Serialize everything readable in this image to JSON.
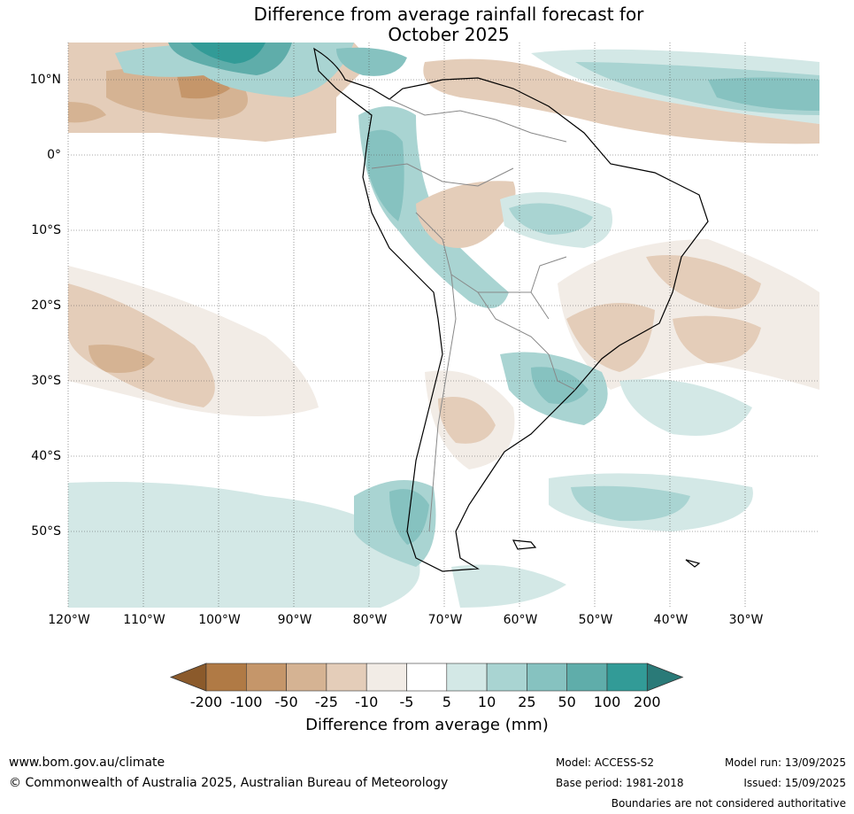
{
  "title_line1": "Difference from average rainfall forecast for",
  "title_line2": "October 2025",
  "lat_labels": [
    "10°N",
    "0°",
    "10°S",
    "20°S",
    "30°S",
    "40°S",
    "50°S"
  ],
  "lon_labels": [
    "120°W",
    "110°W",
    "100°W",
    "90°W",
    "80°W",
    "70°W",
    "60°W",
    "50°W",
    "40°W",
    "30°W"
  ],
  "colorbar": {
    "ticks": [
      "-200",
      "-100",
      "-50",
      "-25",
      "-10",
      "-5",
      "5",
      "10",
      "25",
      "50",
      "100",
      "200"
    ],
    "colors": [
      "#8b5a2b",
      "#b07a45",
      "#c5966a",
      "#d5b393",
      "#e4cdb9",
      "#f2ece6",
      "#ffffff",
      "#d3e8e6",
      "#a9d4d2",
      "#86c2c0",
      "#5fadaa",
      "#329b97",
      "#2a7a78"
    ],
    "title": "Difference from average (mm)"
  },
  "footer": {
    "url": "www.bom.gov.au/climate",
    "copyright": "© Commonwealth of Australia 2025, Australian Bureau of Meteorology",
    "model": "Model: ACCESS-S2",
    "base_period": "Base period: 1981-2018",
    "model_run": "Model run: 13/09/2025",
    "issued": "Issued: 15/09/2025",
    "disclaimer": "Boundaries are not considered authoritative"
  }
}
